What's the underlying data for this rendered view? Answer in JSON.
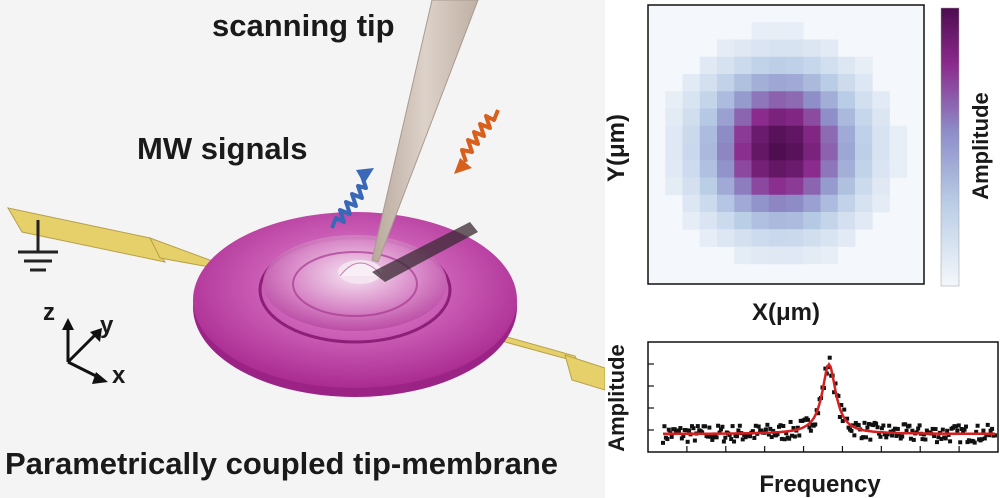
{
  "labels": {
    "scanning_tip": "scanning tip",
    "mw_signals": "MW signals",
    "caption": "Parametrically coupled tip-membrane",
    "axis_z": "z",
    "axis_y": "y",
    "axis_x": "x"
  },
  "heatmap": {
    "xlabel": "X(μm)",
    "ylabel": "Y(μm)",
    "colorbar_label": "Amplitude",
    "colormap": [
      "#f4f7fb",
      "#b9cde6",
      "#8e8fc9",
      "#8a2a8c",
      "#4d0d4f"
    ]
  },
  "chart_data": {
    "type": "scatter",
    "xlabel": "Frequency",
    "ylabel": "Amplitude",
    "series_color": "#111111",
    "fit_color": "#d62020",
    "peak": {
      "x": 0.5,
      "y": 0.85,
      "baseline": 0.0,
      "width": 0.025
    }
  },
  "colors": {
    "membrane": "#c23ea8",
    "electrode": "#e6d06a",
    "signal_blue": "#3a68b8",
    "signal_orange": "#d8601c",
    "tip": "#c9bcb2"
  }
}
